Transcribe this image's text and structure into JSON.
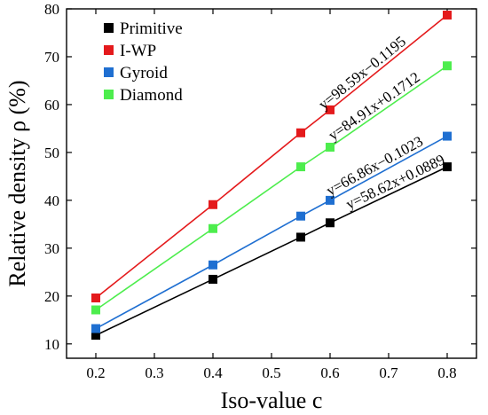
{
  "chart_data": {
    "type": "line",
    "xlabel": "Iso-value c",
    "ylabel": "Relative density ρ (%)",
    "xlim": [
      0.15,
      0.85
    ],
    "ylim": [
      7,
      80
    ],
    "x_ticks": [
      0.2,
      0.3,
      0.4,
      0.5,
      0.6,
      0.7,
      0.8
    ],
    "y_ticks": [
      10,
      20,
      30,
      40,
      50,
      60,
      70,
      80
    ],
    "x_tick_labels": [
      "0.2",
      "0.3",
      "0.4",
      "0.5",
      "0.6",
      "0.7",
      "0.8"
    ],
    "y_tick_labels": [
      "10",
      "20",
      "30",
      "40",
      "50",
      "60",
      "70",
      "80"
    ],
    "grid": false,
    "legend_position": "top-left",
    "x": [
      0.2,
      0.4,
      0.55,
      0.6,
      0.8
    ],
    "series": [
      {
        "name": "Primitive",
        "color": "#000000",
        "values": [
          11.8,
          23.5,
          32.3,
          35.3,
          47.0
        ]
      },
      {
        "name": "I-WP",
        "color": "#e41a1c",
        "values": [
          19.6,
          39.1,
          54.1,
          58.9,
          78.7
        ]
      },
      {
        "name": "Gyroid",
        "color": "#1f6fd1",
        "values": [
          13.2,
          26.5,
          36.7,
          40.0,
          53.4
        ]
      },
      {
        "name": "Diamond",
        "color": "#4ded4d",
        "values": [
          17.1,
          34.1,
          47.0,
          51.1,
          68.1
        ]
      }
    ],
    "annotations": [
      {
        "text": "y=98.59x−0.1195",
        "series": "I-WP"
      },
      {
        "text": "y=84.91x+0.1712",
        "series": "Diamond"
      },
      {
        "text": "y=66.86x−0.1023",
        "series": "Gyroid"
      },
      {
        "text": "y=58.62x+0.0889",
        "series": "Primitive"
      }
    ]
  }
}
